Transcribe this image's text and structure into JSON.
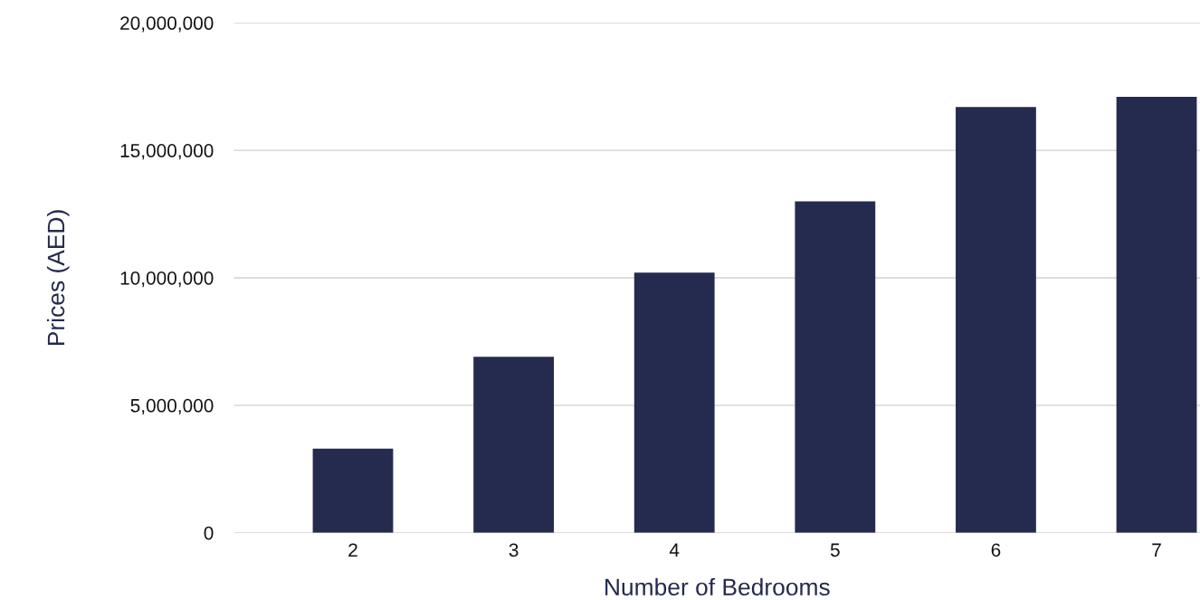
{
  "chart_data": {
    "type": "bar",
    "xlabel": "Number of Bedrooms",
    "ylabel": "Prices (AED)",
    "categories": [
      "2",
      "3",
      "4",
      "5",
      "6",
      "7"
    ],
    "values": [
      3300000,
      6900000,
      10200000,
      13000000,
      16700000,
      17100000
    ],
    "color": "#252a4f",
    "ylim": [
      0,
      20000000
    ],
    "yticks": [
      {
        "value": 0,
        "label": "0"
      },
      {
        "value": 5000000,
        "label": "5,000,000"
      },
      {
        "value": 10000000,
        "label": "10,000,000"
      },
      {
        "value": 15000000,
        "label": "15,000,000"
      },
      {
        "value": 20000000,
        "label": "20,000,000"
      }
    ],
    "grid": "y"
  }
}
